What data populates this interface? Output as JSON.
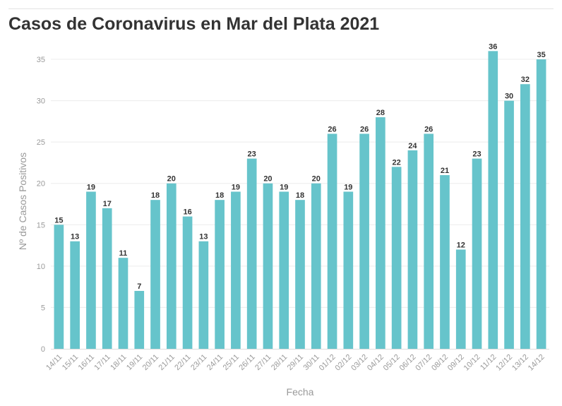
{
  "chart_data": {
    "type": "bar",
    "title": "Casos de Coronavirus en Mar del Plata 2021",
    "xlabel": "Fecha",
    "ylabel": "Nº de Casos Positivos",
    "categories": [
      "14/11",
      "15/11",
      "16/11",
      "17/11",
      "18/11",
      "19/11",
      "20/11",
      "21/11",
      "22/11",
      "23/11",
      "24/11",
      "25/11",
      "26/11",
      "27/11",
      "28/11",
      "29/11",
      "30/11",
      "01/12",
      "02/12",
      "03/12",
      "04/12",
      "05/12",
      "06/12",
      "07/12",
      "08/12",
      "09/12",
      "10/12",
      "11/12",
      "12/12",
      "13/12",
      "14/12"
    ],
    "values": [
      15,
      13,
      19,
      17,
      11,
      7,
      18,
      20,
      16,
      13,
      18,
      19,
      23,
      20,
      19,
      18,
      20,
      26,
      19,
      26,
      28,
      22,
      24,
      26,
      21,
      12,
      23,
      36,
      30,
      32,
      35
    ],
    "ylim": [
      0,
      36
    ],
    "yticks": [
      0,
      5,
      10,
      15,
      20,
      25,
      30,
      35
    ],
    "grid": true,
    "bar_color": "#66c4cb",
    "data_labels": true
  }
}
